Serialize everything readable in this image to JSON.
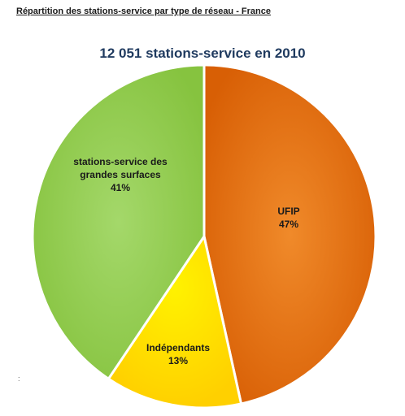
{
  "header": {
    "title": "Répartition des stations-service par type de réseau - France"
  },
  "side_mark": ":",
  "chart_data": {
    "type": "pie",
    "title": "12 051 stations-service en 2010",
    "slices": [
      {
        "label_lines": [
          "UFIP"
        ],
        "percent_label": "47%",
        "value": 47,
        "color": "#e46c0a"
      },
      {
        "label_lines": [
          "Indépendants"
        ],
        "percent_label": "13%",
        "value": 13,
        "color": "#ffe600"
      },
      {
        "label_lines": [
          "stations-service des",
          "grandes surfaces"
        ],
        "percent_label": "41%",
        "value": 41,
        "color": "#92d050"
      }
    ]
  }
}
